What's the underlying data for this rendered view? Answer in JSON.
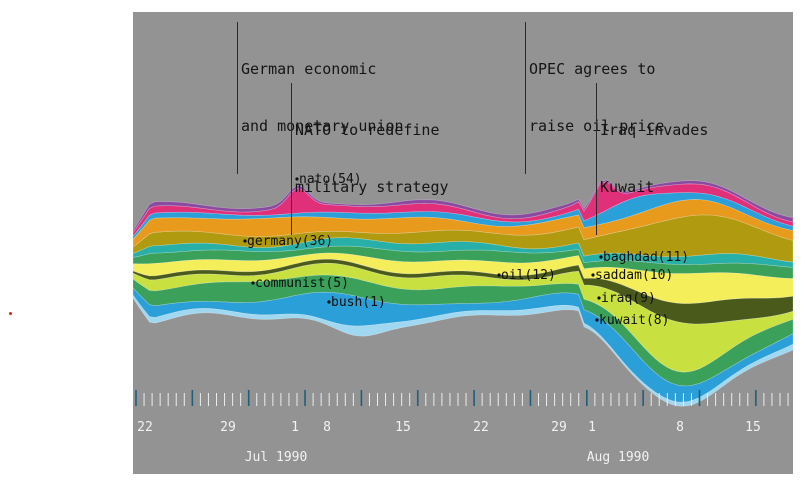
{
  "events": [
    {
      "line1": "German economic",
      "line2": "and monetary union"
    },
    {
      "line1": "OPEC agrees to",
      "line2": "raise oil price"
    },
    {
      "line1": "NATO to redefine",
      "line2": "military strategy"
    },
    {
      "line1": "Iraq invades",
      "line2": "Kuwait"
    }
  ],
  "chart_data": {
    "type": "area",
    "layout": "streamgraph",
    "terms": [
      {
        "name": "nato",
        "value": 54,
        "label": "nato(54)"
      },
      {
        "name": "germany",
        "value": 36,
        "label": "germany(36)"
      },
      {
        "name": "communist",
        "value": 5,
        "label": "communist(5)"
      },
      {
        "name": "bush",
        "value": 1,
        "label": "bush(1)"
      },
      {
        "name": "oil",
        "value": 12,
        "label": "oil(12)"
      },
      {
        "name": "baghdad",
        "value": 11,
        "label": "baghdad(11)"
      },
      {
        "name": "saddam",
        "value": 10,
        "label": "saddam(10)"
      },
      {
        "name": "iraq",
        "value": 9,
        "label": "iraq(9)"
      },
      {
        "name": "kuwait",
        "value": 8,
        "label": "kuwait(8)"
      }
    ],
    "tick_labels": [
      "22",
      "29",
      "1",
      "8",
      "15",
      "22",
      "29",
      "1",
      "8",
      "15"
    ],
    "months": [
      "Jul 1990",
      "Aug 1990"
    ],
    "colors": {
      "background": "#939393",
      "magenta": "#e0307a",
      "orange": "#e89a1c",
      "olive": "#b09a10",
      "yellow": "#f4ee5a",
      "green": "#3aa05a",
      "teal": "#28b0a8",
      "blue": "#2a9fd8",
      "lime": "#c8e040",
      "darkolive": "#4a5a1a",
      "purple": "#8a4aa0"
    }
  }
}
